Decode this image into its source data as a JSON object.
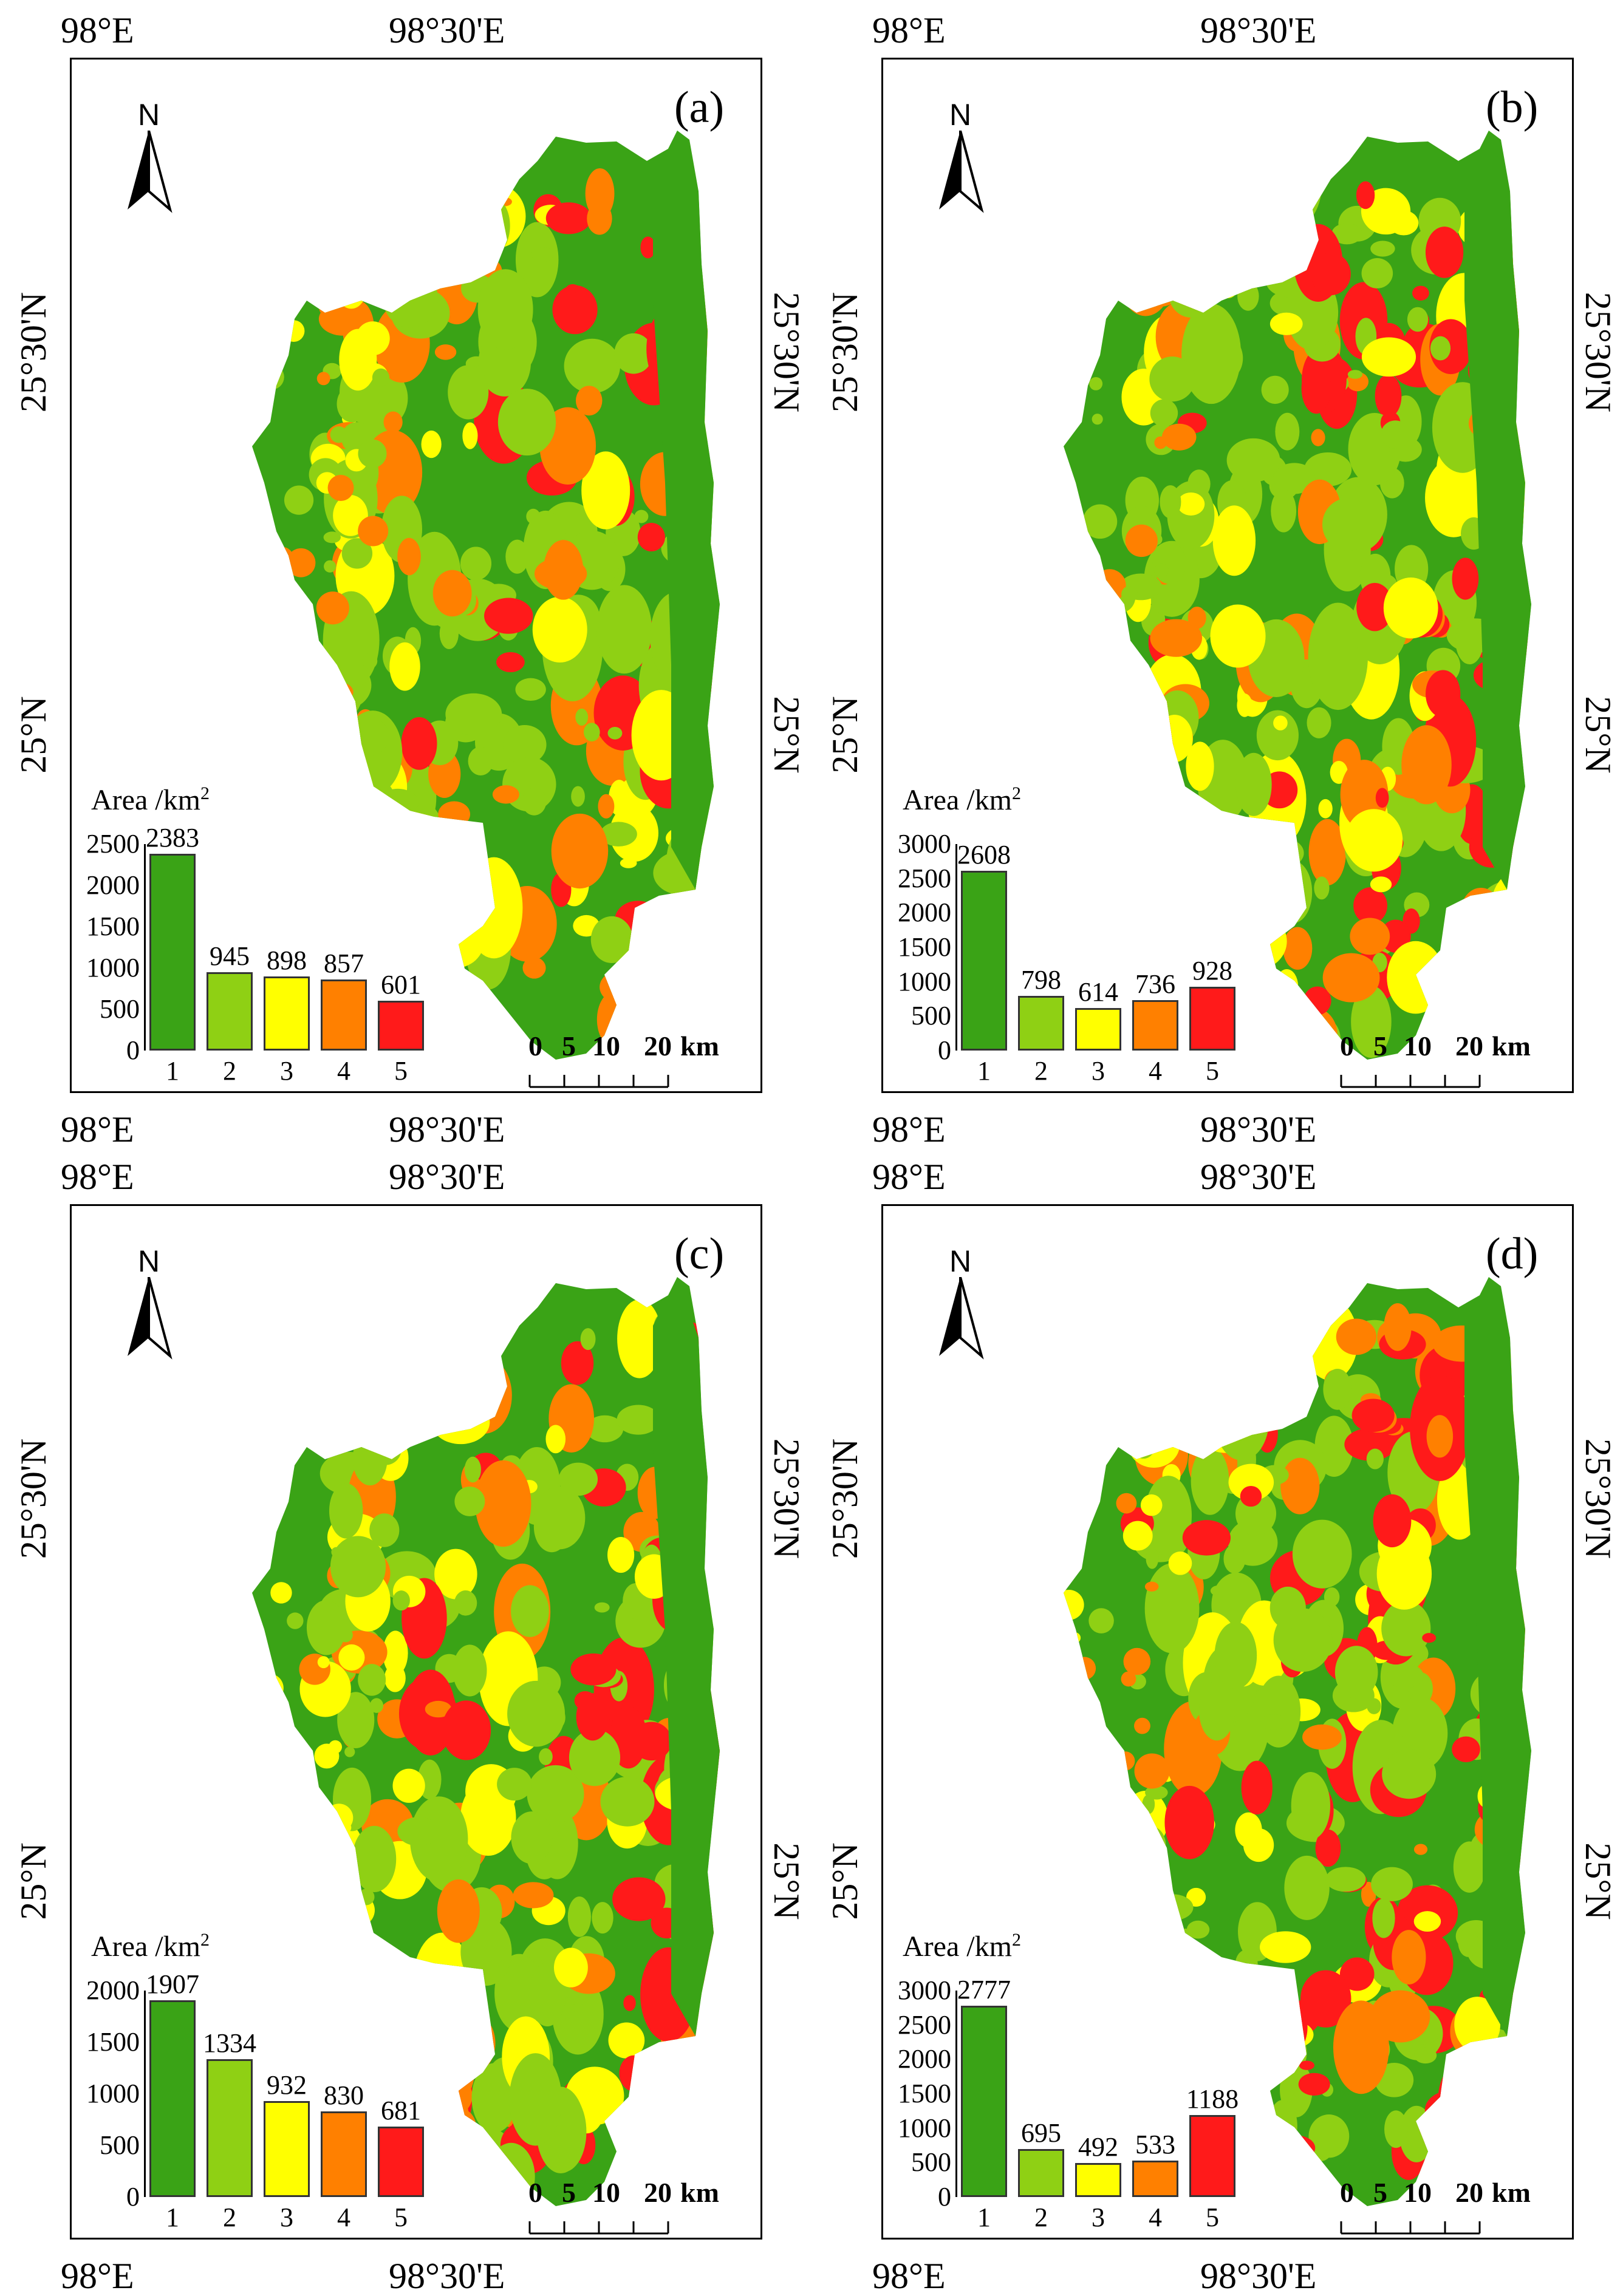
{
  "coords": {
    "lon_left": "98°E",
    "lon_right": "98°30'E",
    "lat_top": "25°30'N",
    "lat_bottom": "25°N"
  },
  "north_letter": "N",
  "scale": {
    "labels": [
      "0",
      "5",
      "10",
      "20"
    ],
    "unit": "km"
  },
  "colors": {
    "class1": "#3aa316",
    "class2": "#8fd014",
    "class3": "#ffff00",
    "class4": "#ff8000",
    "class5": "#ff1a1a"
  },
  "panels": [
    {
      "label": "(a)",
      "chart_data": {
        "type": "bar",
        "title": "Area /km",
        "title_sup": "2",
        "categories": [
          "1",
          "2",
          "3",
          "4",
          "5"
        ],
        "values": [
          2383,
          945,
          898,
          857,
          601
        ],
        "yticks": [
          "0",
          "500",
          "1000",
          "1500",
          "2000",
          "2500"
        ],
        "ylim": [
          0,
          2500
        ]
      }
    },
    {
      "label": "(b)",
      "chart_data": {
        "type": "bar",
        "title": "Area /km",
        "title_sup": "2",
        "categories": [
          "1",
          "2",
          "3",
          "4",
          "5"
        ],
        "values": [
          2608,
          798,
          614,
          736,
          928
        ],
        "yticks": [
          "0",
          "500",
          "1000",
          "1500",
          "2000",
          "2500",
          "3000"
        ],
        "ylim": [
          0,
          3000
        ]
      }
    },
    {
      "label": "(c)",
      "chart_data": {
        "type": "bar",
        "title": "Area /km",
        "title_sup": "2",
        "categories": [
          "1",
          "2",
          "3",
          "4",
          "5"
        ],
        "values": [
          1907,
          1334,
          932,
          830,
          681
        ],
        "yticks": [
          "0",
          "500",
          "1000",
          "1500",
          "2000"
        ],
        "ylim": [
          0,
          2000
        ]
      }
    },
    {
      "label": "(d)",
      "chart_data": {
        "type": "bar",
        "title": "Area /km",
        "title_sup": "2",
        "categories": [
          "1",
          "2",
          "3",
          "4",
          "5"
        ],
        "values": [
          2777,
          695,
          492,
          533,
          1188
        ],
        "yticks": [
          "0",
          "500",
          "1000",
          "1500",
          "2000",
          "2500",
          "3000"
        ],
        "ylim": [
          0,
          3000
        ]
      }
    }
  ]
}
